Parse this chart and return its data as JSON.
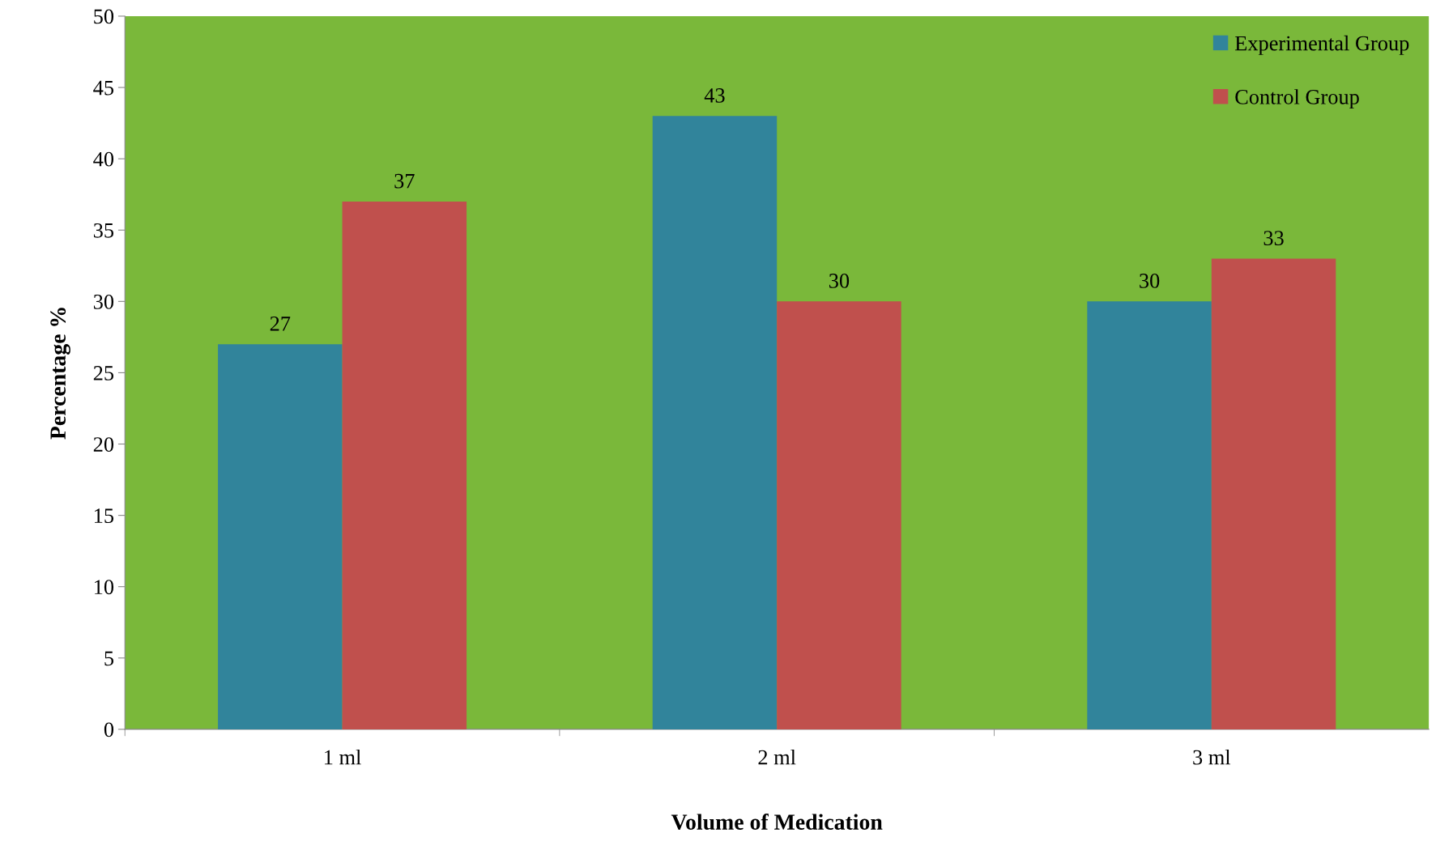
{
  "chart_data": {
    "type": "bar",
    "xlabel": "Volume of Medication",
    "ylabel": "Percentage %",
    "categories": [
      "1 ml",
      "2 ml",
      "3 ml"
    ],
    "series": [
      {
        "name": "Experimental Group",
        "color": "#31849b",
        "values": [
          27,
          43,
          30
        ]
      },
      {
        "name": "Control Group",
        "color": "#c0504d",
        "values": [
          37,
          30,
          33
        ]
      }
    ],
    "ylim": [
      0,
      50
    ],
    "yticks": [
      0,
      5,
      10,
      15,
      20,
      25,
      30,
      35,
      40,
      45,
      50
    ],
    "data_labels": true,
    "legend": "top right",
    "grid": false
  }
}
